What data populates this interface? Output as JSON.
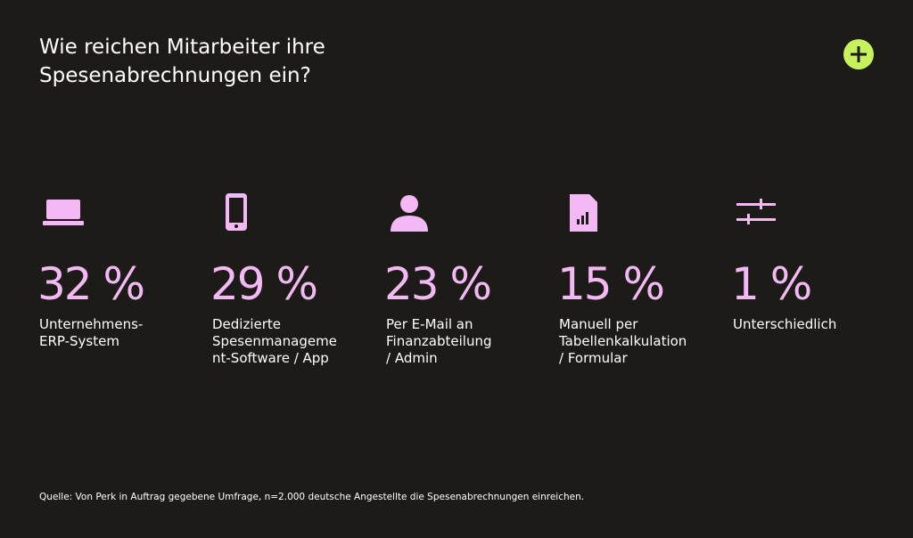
{
  "header": {
    "title_lines": [
      "Wie reichen Mitarbeiter ihre",
      "Spesenabrechnungen ein?"
    ]
  },
  "items": [
    {
      "value": "32 %",
      "label_lines": [
        "Unternehmens-",
        "ERP-System"
      ]
    },
    {
      "value": "29 %",
      "label_lines": [
        "Dedizierte",
        "Spesenmanageme",
        "nt-Software / App"
      ]
    },
    {
      "value": "23 %",
      "label_lines": [
        "Per E-Mail an",
        "Finanzabteilung",
        "/ Admin"
      ]
    },
    {
      "value": "15 %",
      "label_lines": [
        "Manuell per",
        "Tabellenkalkulation",
        "/ Formular"
      ]
    },
    {
      "value": "1 %",
      "label_lines": [
        "Unterschiedlich"
      ]
    }
  ],
  "footer": {
    "source": "Quelle: Von Perk in Auftrag gegebene Umfrage, n=2.000 deutsche Angestellte die Spesenabrechnungen einreichen."
  }
}
